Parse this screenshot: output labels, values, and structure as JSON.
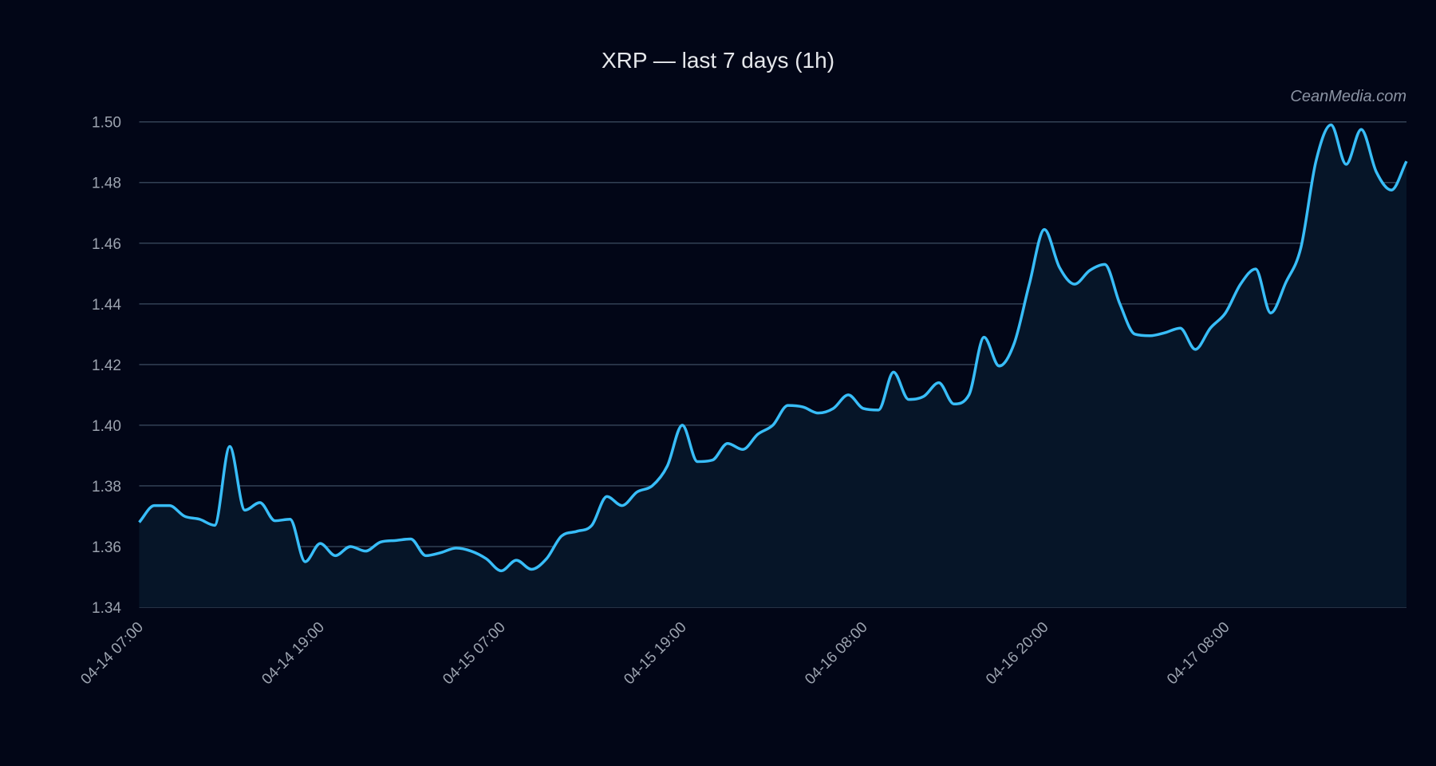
{
  "chart_data": {
    "type": "line",
    "title": "XRP — last 7 days (1h)",
    "watermark": "CeanMedia.com",
    "xlabel": "",
    "ylabel": "",
    "ylim": [
      1.34,
      1.5
    ],
    "y_ticks": [
      "1.34",
      "1.36",
      "1.38",
      "1.40",
      "1.42",
      "1.44",
      "1.46",
      "1.48",
      "1.50"
    ],
    "x_ticks": [
      "04-14 07:00",
      "04-14 19:00",
      "04-15 07:00",
      "04-15 19:00",
      "04-16 08:00",
      "04-16 20:00",
      "04-17 08:00"
    ],
    "grid": true,
    "colors": {
      "background": "#020617",
      "line": "#38bdf8",
      "area": "#061528",
      "grid": "#334155"
    },
    "values": [
      1.368,
      1.3735,
      1.3735,
      1.37,
      1.369,
      1.367,
      1.393,
      1.372,
      1.3745,
      1.3685,
      1.369,
      1.355,
      1.361,
      1.357,
      1.36,
      1.3585,
      1.3615,
      1.362,
      1.3625,
      1.357,
      1.358,
      1.3595,
      1.3585,
      1.356,
      1.352,
      1.3555,
      1.3525,
      1.356,
      1.3635,
      1.365,
      1.367,
      1.3765,
      1.3735,
      1.378,
      1.38,
      1.3865,
      1.4,
      1.388,
      1.3885,
      1.394,
      1.392,
      1.397,
      1.4,
      1.4065,
      1.406,
      1.404,
      1.4055,
      1.41,
      1.4055,
      1.405,
      1.4175,
      1.4085,
      1.4095,
      1.414,
      1.407,
      1.41,
      1.429,
      1.4195,
      1.427,
      1.4465,
      1.4645,
      1.452,
      1.4465,
      1.451,
      1.453,
      1.44,
      1.43,
      1.4295,
      1.4305,
      1.432,
      1.425,
      1.432,
      1.437,
      1.4465,
      1.4515,
      1.437,
      1.447,
      1.4585,
      1.487,
      1.499,
      1.486,
      1.4975,
      1.4835,
      1.4775,
      1.487
    ]
  }
}
